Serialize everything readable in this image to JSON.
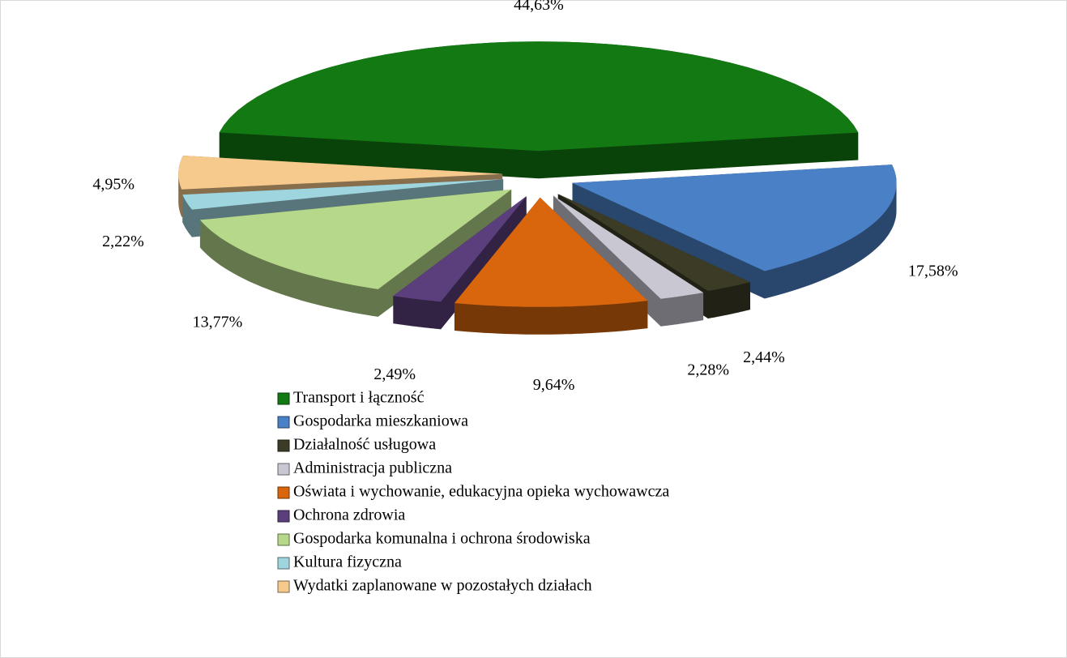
{
  "chart_data": {
    "type": "pie",
    "categories": [
      "Transport i łączność",
      "Gospodarka mieszkaniowa",
      "Działalność usługowa",
      "Administracja publiczna",
      "Oświata i wychowanie, edukacyjna opieka wychowawcza",
      "Ochrona zdrowia",
      "Gospodarka komunalna i ochrona środowiska",
      "Kultura fizyczna",
      "Wydatki zaplanowane w pozostałych działach"
    ],
    "values": [
      44.63,
      17.58,
      2.44,
      2.28,
      9.64,
      2.49,
      13.77,
      2.22,
      4.95
    ],
    "value_labels": [
      "44,63%",
      "17,58%",
      "2,44%",
      "2,28%",
      "9,64%",
      "2,49%",
      "13,77%",
      "2,22%",
      "4,95%"
    ],
    "colors": [
      "#137a13",
      "#4a80c6",
      "#3c3c26",
      "#c9c7d2",
      "#d9650c",
      "#5b3f7c",
      "#b6d88a",
      "#9fd5de",
      "#f6ca8c"
    ],
    "legend": "bottom"
  }
}
